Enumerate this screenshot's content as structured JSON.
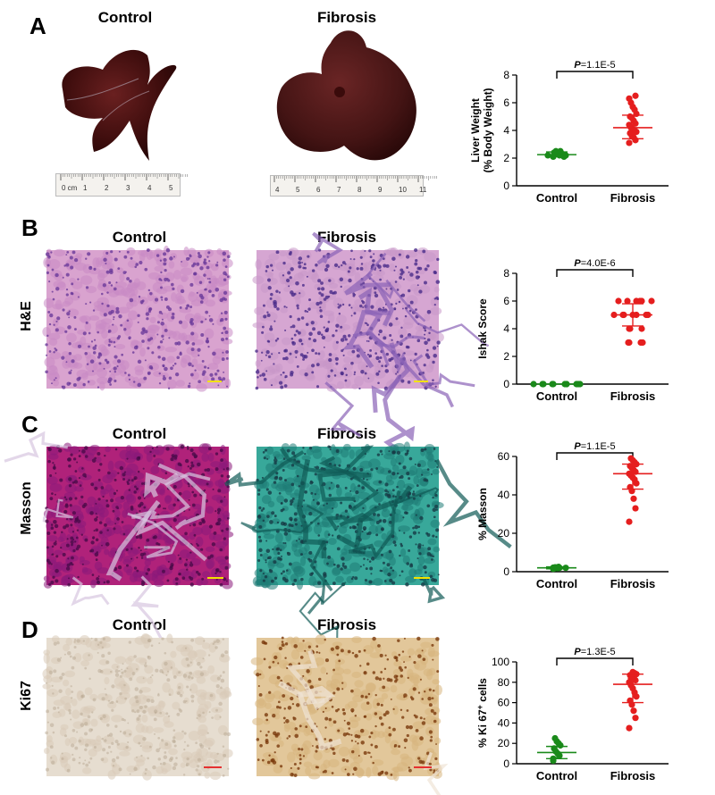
{
  "panels": {
    "A": {
      "letter": "A",
      "control_title": "Control",
      "fibrosis_title": "Fibrosis",
      "ruler_control": [
        "0 cm",
        "1",
        "2",
        "3",
        "4",
        "5"
      ],
      "ruler_fibrosis": [
        "4",
        "5",
        "6",
        "7",
        "8",
        "9",
        "10",
        "11"
      ]
    },
    "B": {
      "letter": "B",
      "control_title": "Control",
      "fibrosis_title": "Fibrosis",
      "row_label": "H&E"
    },
    "C": {
      "letter": "C",
      "control_title": "Control",
      "fibrosis_title": "Fibrosis",
      "row_label": "Masson"
    },
    "D": {
      "letter": "D",
      "control_title": "Control",
      "fibrosis_title": "Fibrosis",
      "row_label": "Ki67"
    }
  },
  "colors": {
    "control": "#1a8a1a",
    "fibrosis": "#e51e1e",
    "scalebar_yellow": "#f2e200",
    "scalebar_red": "#e53030"
  },
  "chart_data": [
    {
      "type": "scatter",
      "id": "A",
      "ylabel_line1": "Liver Weight",
      "ylabel_line2": "(% Body Weight)",
      "ylim": [
        0,
        8
      ],
      "yticks": [
        0,
        2,
        4,
        6,
        8
      ],
      "categories": [
        "Control",
        "Fibrosis"
      ],
      "pvalue": "P=1.1E-5",
      "series": [
        {
          "name": "Control",
          "values": [
            2.1,
            2.2,
            2.3,
            2.5,
            2.4,
            2.2,
            2.1,
            2.3,
            2.5,
            2.2
          ],
          "mean": 2.25,
          "sd_low": 2.1,
          "sd_high": 2.45
        },
        {
          "name": "Fibrosis",
          "values": [
            3.1,
            3.3,
            3.5,
            3.6,
            3.8,
            3.9,
            4.0,
            4.1,
            4.2,
            4.4,
            4.5,
            4.7,
            4.9,
            5.0,
            5.2,
            5.5,
            5.7,
            6.0,
            6.3,
            6.5
          ],
          "mean": 4.2,
          "sd_low": 3.4,
          "sd_high": 5.1
        }
      ]
    },
    {
      "type": "scatter",
      "id": "B",
      "ylabel_line1": "Ishak  Score",
      "ylabel_line2": "",
      "ylim": [
        0,
        8
      ],
      "yticks": [
        0,
        2,
        4,
        6,
        8
      ],
      "categories": [
        "Control",
        "Fibrosis"
      ],
      "pvalue": "P=4.0E-6",
      "series": [
        {
          "name": "Control",
          "values": [
            0,
            0,
            0,
            0,
            0,
            0,
            0,
            0,
            0,
            0
          ],
          "mean": 0,
          "sd_low": 0,
          "sd_high": 0
        },
        {
          "name": "Fibrosis",
          "values": [
            3,
            3,
            3,
            3,
            4,
            4,
            4,
            5,
            5,
            5,
            5,
            5,
            5,
            5,
            6,
            6,
            6,
            6,
            6,
            6
          ],
          "mean": 5.0,
          "sd_low": 4.2,
          "sd_high": 5.8
        }
      ]
    },
    {
      "type": "scatter",
      "id": "C",
      "ylabel_line1": "% Masson",
      "ylabel_line2": "",
      "ylim": [
        0,
        60
      ],
      "yticks": [
        0,
        20,
        40,
        60
      ],
      "categories": [
        "Control",
        "Fibrosis"
      ],
      "pvalue": "P=1.1E-5",
      "series": [
        {
          "name": "Control",
          "values": [
            1.5,
            2,
            1.8,
            2.2,
            1.6,
            2,
            2.5,
            1.9,
            2.3,
            2.1
          ],
          "mean": 2,
          "sd_low": 1.5,
          "sd_high": 2.5
        },
        {
          "name": "Fibrosis",
          "values": [
            26,
            33,
            38,
            42,
            44,
            46,
            48,
            49,
            50,
            51,
            52,
            53,
            54,
            55,
            56,
            57,
            58,
            59,
            56
          ],
          "mean": 51,
          "sd_low": 43,
          "sd_high": 56
        }
      ]
    },
    {
      "type": "scatter",
      "id": "D",
      "ylabel_line1": "% Ki 67",
      "ylabel_sup": "+",
      "ylabel_after": " cells",
      "ylabel_line2": "",
      "ylim": [
        0,
        100
      ],
      "yticks": [
        0,
        20,
        40,
        60,
        80,
        100
      ],
      "categories": [
        "Control",
        "Fibrosis"
      ],
      "pvalue": "P=1.3E-5",
      "series": [
        {
          "name": "Control",
          "values": [
            5,
            8,
            10,
            12,
            15,
            18,
            20,
            22,
            25,
            3
          ],
          "mean": 11,
          "sd_low": 5,
          "sd_high": 17
        },
        {
          "name": "Fibrosis",
          "values": [
            35,
            45,
            52,
            58,
            62,
            66,
            70,
            74,
            77,
            80,
            82,
            85,
            86,
            87,
            88,
            89,
            90,
            84
          ],
          "mean": 78,
          "sd_low": 60,
          "sd_high": 88
        }
      ]
    }
  ]
}
